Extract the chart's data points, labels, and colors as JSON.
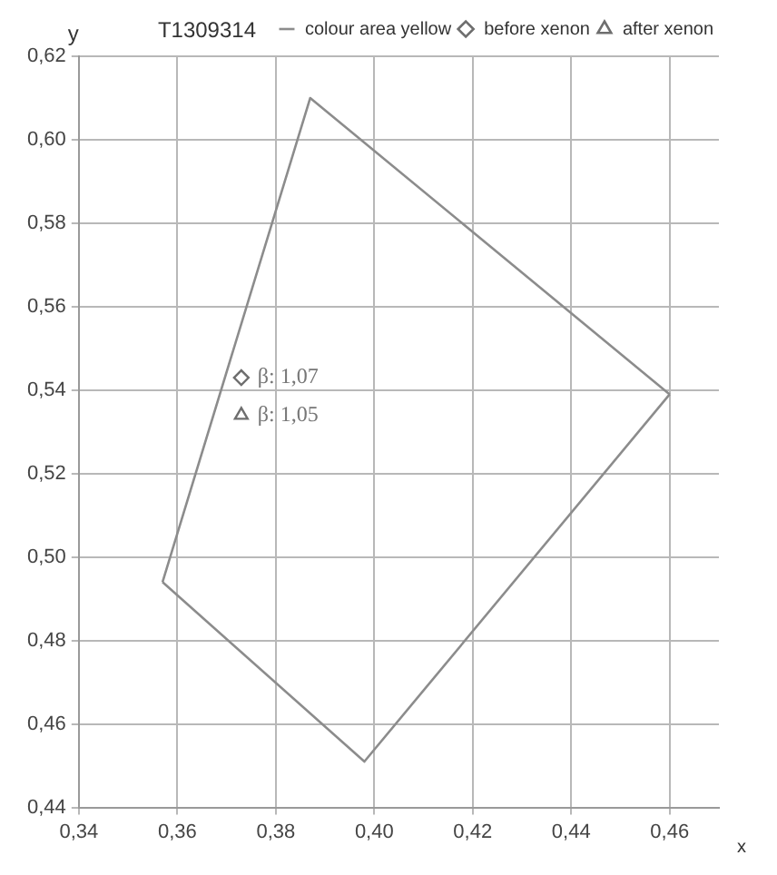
{
  "chart_data": {
    "type": "scatter",
    "title": "T1309314",
    "xlabel": "x",
    "ylabel": "y",
    "series": [
      {
        "name": "colour area yellow",
        "type": "line",
        "color": "#8c8c8c",
        "marker": "none",
        "x": [
          0.357,
          0.387,
          0.46
        ],
        "values": [
          0.494,
          0.61,
          0.539
        ]
      },
      {
        "type": "line",
        "color": "#8c8c8c",
        "marker": "none",
        "x": [
          0.357,
          0.398,
          0.46
        ],
        "values": [
          0.494,
          0.451,
          0.539
        ]
      },
      {
        "name": "before xenon",
        "type": "scatter",
        "color": "#6e6e6e",
        "marker": "diamond",
        "x": [
          0.373
        ],
        "values": [
          0.543
        ]
      },
      {
        "name": "after xenon",
        "type": "scatter",
        "color": "#6e6e6e",
        "marker": "triangle",
        "x": [
          0.373
        ],
        "values": [
          0.534
        ]
      }
    ],
    "annotations": [
      {
        "text": "β: 1,07",
        "x": 0.373,
        "y": 0.543
      },
      {
        "text": "β: 1,05",
        "x": 0.373,
        "y": 0.534
      }
    ],
    "xlim": [
      0.34,
      0.47
    ],
    "ylim": [
      0.44,
      0.62
    ],
    "xticks": [
      {
        "value": 0.34,
        "label": "0,34"
      },
      {
        "value": 0.36,
        "label": "0,36"
      },
      {
        "value": 0.38,
        "label": "0,38"
      },
      {
        "value": 0.4,
        "label": "0,40"
      },
      {
        "value": 0.42,
        "label": "0,42"
      },
      {
        "value": 0.44,
        "label": "0,44"
      },
      {
        "value": 0.46,
        "label": "0,46"
      }
    ],
    "yticks": [
      {
        "value": 0.44,
        "label": "0,44"
      },
      {
        "value": 0.46,
        "label": "0,46"
      },
      {
        "value": 0.48,
        "label": "0,48"
      },
      {
        "value": 0.5,
        "label": "0,50"
      },
      {
        "value": 0.52,
        "label": "0,52"
      },
      {
        "value": 0.54,
        "label": "0,54"
      },
      {
        "value": 0.56,
        "label": "0,56"
      },
      {
        "value": 0.58,
        "label": "0,58"
      },
      {
        "value": 0.6,
        "label": "0,60"
      },
      {
        "value": 0.62,
        "label": "0,62"
      }
    ],
    "grid": true,
    "legend": "top right"
  }
}
